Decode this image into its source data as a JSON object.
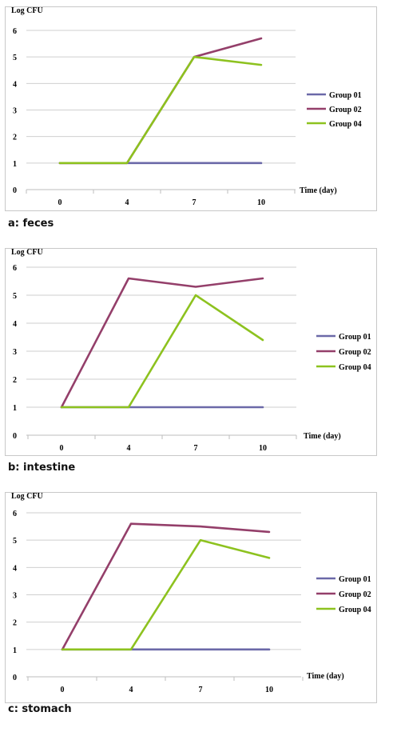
{
  "chart_data": [
    {
      "type": "line",
      "ylabel": "Log CFU",
      "xlabel": "Time (day)",
      "categories": [
        "0",
        "4",
        "7",
        "10"
      ],
      "ylim": [
        0,
        6
      ],
      "yticks": [
        "0",
        "1",
        "2",
        "3",
        "4",
        "5",
        "6"
      ],
      "grid": true,
      "legend": "right",
      "series": [
        {
          "name": "Group 01",
          "color": "#6b69a8",
          "values": [
            1,
            1,
            1,
            1
          ]
        },
        {
          "name": "Group 02",
          "color": "#943f6a",
          "values": [
            1,
            1,
            5,
            5.7
          ]
        },
        {
          "name": "Group 04",
          "color": "#8dc21f",
          "values": [
            1,
            1,
            5,
            4.7
          ]
        }
      ],
      "caption": "a: feces"
    },
    {
      "type": "line",
      "ylabel": "Log CFU",
      "xlabel": "Time (day)",
      "categories": [
        "0",
        "4",
        "7",
        "10"
      ],
      "ylim": [
        0,
        6
      ],
      "yticks": [
        "0",
        "1",
        "2",
        "3",
        "4",
        "5",
        "6"
      ],
      "grid": true,
      "legend": "right",
      "series": [
        {
          "name": "Group 01",
          "color": "#6b69a8",
          "values": [
            1,
            1,
            1,
            1
          ]
        },
        {
          "name": "Group 02",
          "color": "#943f6a",
          "values": [
            1,
            5.6,
            5.3,
            5.6
          ]
        },
        {
          "name": "Group 04",
          "color": "#8dc21f",
          "values": [
            1,
            1,
            5,
            3.4
          ]
        }
      ],
      "caption": "b: intestine"
    },
    {
      "type": "line",
      "ylabel": "Log CFU",
      "xlabel": "Time (day)",
      "categories": [
        "0",
        "4",
        "7",
        "10"
      ],
      "ylim": [
        0,
        6
      ],
      "yticks": [
        "0",
        "1",
        "2",
        "3",
        "4",
        "5",
        "6"
      ],
      "grid": true,
      "legend": "right",
      "series": [
        {
          "name": "Group 01",
          "color": "#6b69a8",
          "values": [
            1,
            1,
            1,
            1
          ]
        },
        {
          "name": "Group 02",
          "color": "#943f6a",
          "values": [
            1,
            5.6,
            5.5,
            5.3
          ]
        },
        {
          "name": "Group 04",
          "color": "#8dc21f",
          "values": [
            1,
            1,
            5,
            4.35
          ]
        }
      ],
      "caption": "c: stomach"
    }
  ]
}
